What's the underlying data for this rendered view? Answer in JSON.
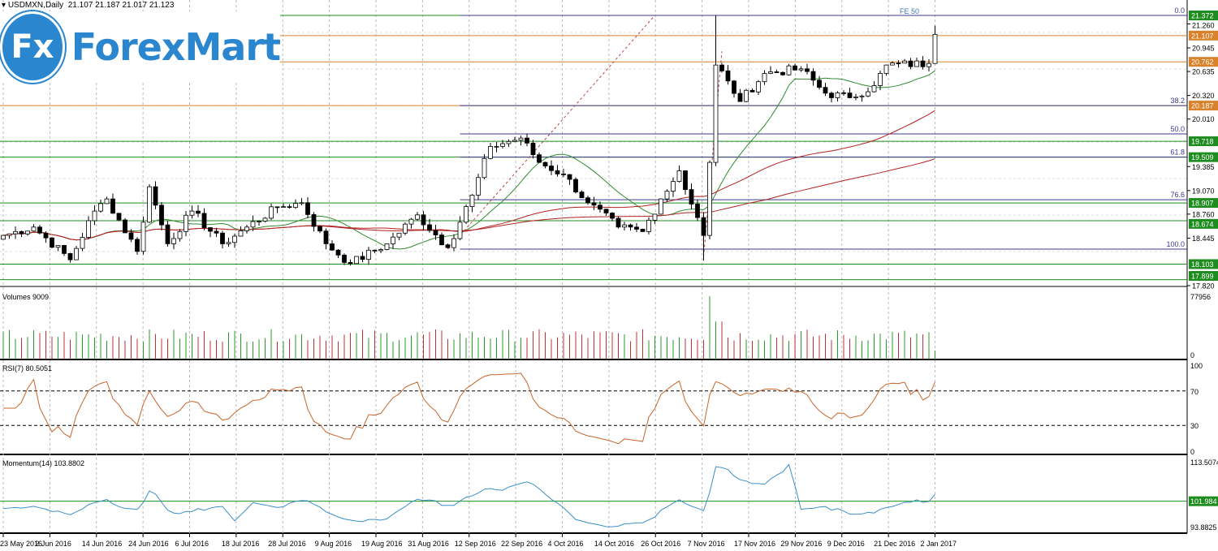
{
  "header": {
    "symbol": "USDMXN",
    "timeframe": "Daily",
    "ohlc": "21.107 21.187 21.017 21.123"
  },
  "logo": {
    "mark": "Fx",
    "name": "ForexMart"
  },
  "chart_data": {
    "type": "candlestick",
    "title": "USDMXN,Daily",
    "last_bar": {
      "open": 21.107,
      "high": 21.187,
      "low": 21.017,
      "close": 21.123
    },
    "ylim": [
      17.82,
      21.372
    ],
    "price_ticks": [
      "21.260",
      "20.945",
      "20.635",
      "20.320",
      "20.010",
      "19.385",
      "19.070",
      "18.760",
      "18.445",
      "17.820"
    ],
    "close_keypoints": [
      [
        0,
        18.48
      ],
      [
        5,
        18.59
      ],
      [
        11,
        18.16
      ],
      [
        15,
        18.8
      ],
      [
        17,
        18.96
      ],
      [
        22,
        18.27
      ],
      [
        24,
        19.12
      ],
      [
        27,
        18.37
      ],
      [
        31,
        18.8
      ],
      [
        36,
        18.37
      ],
      [
        40,
        18.59
      ],
      [
        45,
        18.85
      ],
      [
        49,
        18.91
      ],
      [
        53,
        18.37
      ],
      [
        57,
        18.11
      ],
      [
        63,
        18.37
      ],
      [
        68,
        18.75
      ],
      [
        73,
        18.32
      ],
      [
        77,
        19.01
      ],
      [
        80,
        19.65
      ],
      [
        85,
        19.76
      ],
      [
        88,
        19.44
      ],
      [
        92,
        19.28
      ],
      [
        96,
        18.91
      ],
      [
        101,
        18.59
      ],
      [
        105,
        18.53
      ],
      [
        108,
        18.96
      ],
      [
        111,
        19.33
      ],
      [
        115,
        18.48
      ],
      [
        116,
        19.44
      ],
      [
        117,
        20.72
      ],
      [
        119,
        20.51
      ],
      [
        121,
        20.24
      ],
      [
        125,
        20.61
      ],
      [
        131,
        20.67
      ],
      [
        135,
        20.35
      ],
      [
        139,
        20.29
      ],
      [
        143,
        20.45
      ],
      [
        145,
        20.72
      ],
      [
        152,
        20.74
      ],
      [
        153,
        21.123
      ]
    ],
    "levels": [
      {
        "price": 21.372,
        "label": "21.372",
        "color": "#1e8c1e"
      },
      {
        "price": 21.107,
        "label": "21.107",
        "color": "#d9822b"
      },
      {
        "price": 20.762,
        "label": "20.762",
        "color": "#d9822b"
      },
      {
        "price": 20.187,
        "label": "20.187",
        "color": "#d9822b"
      },
      {
        "price": 19.718,
        "label": "19.718",
        "color": "#1e8c1e"
      },
      {
        "price": 19.509,
        "label": "19.509",
        "color": "#1e8c1e"
      },
      {
        "price": 18.907,
        "label": "18.907",
        "color": "#1e8c1e"
      },
      {
        "price": 18.674,
        "label": "18.674",
        "color": "#1e8c1e"
      },
      {
        "price": 18.103,
        "label": "18.103",
        "color": "#1e8c1e"
      },
      {
        "price": 17.899,
        "label": "17.899",
        "color": "#1e8c1e"
      }
    ],
    "fibo": {
      "name": "FE 50",
      "levels": [
        {
          "label": "0.0",
          "price": 21.372
        },
        {
          "label": "38.2",
          "price": 20.187
        },
        {
          "label": "50.0",
          "price": 19.815
        },
        {
          "label": "61.8",
          "price": 19.509
        },
        {
          "label": "76.6",
          "price": 18.95
        },
        {
          "label": "100.0",
          "price": 18.3
        }
      ]
    },
    "moving_averages": [
      {
        "period": 14,
        "color": "#2e8b2e"
      },
      {
        "period": 50,
        "color": "#b22222"
      },
      {
        "period": 100,
        "color": "#b22222"
      }
    ],
    "volumes": {
      "label": "Volumes 9009",
      "max_label": "77956",
      "zero_label": "0",
      "max": 77956
    },
    "rsi": {
      "label": "RSI(7) 80.5051",
      "ticks": [
        "100",
        "70",
        "30",
        "0"
      ],
      "color": "#c8642a"
    },
    "momentum": {
      "label": "Momentum(14) 103.8802",
      "ticks": [
        "113.5074",
        "93.8825"
      ],
      "level": "101.984",
      "range": [
        93.8825,
        113.5074
      ],
      "color": "#3a8fc8"
    },
    "date_labels": [
      "23 May 2016",
      "2 Jun 2016",
      "14 Jun 2016",
      "24 Jun 2016",
      "6 Jul 2016",
      "18 Jul 2016",
      "28 Jul 2016",
      "9 Aug 2016",
      "19 Aug 2016",
      "31 Aug 2016",
      "12 Sep 2016",
      "22 Sep 2016",
      "4 Oct 2016",
      "14 Oct 2016",
      "26 Oct 2016",
      "7 Nov 2016",
      "17 Nov 2016",
      "29 Nov 2016",
      "9 Dec 2016",
      "21 Dec 2016",
      "2 Jan 2017"
    ]
  }
}
